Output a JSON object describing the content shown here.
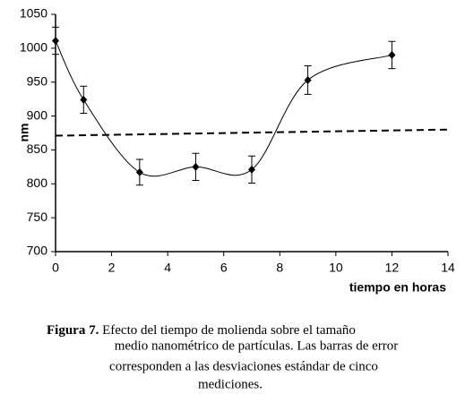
{
  "chart_data": {
    "type": "line",
    "x_label": "tiempo en horas",
    "y_label": "nm",
    "x": [
      0,
      1,
      3,
      5,
      7,
      9,
      12
    ],
    "series": [
      {
        "color": "#000000",
        "values": [
          1011,
          924,
          817,
          825,
          821,
          953,
          990
        ],
        "errors": [
          20,
          20,
          19,
          20,
          20,
          21,
          20
        ]
      }
    ],
    "reference_line": {
      "x": [
        0,
        14
      ],
      "values": [
        871,
        880
      ],
      "color": "#000000"
    },
    "xlim": [
      0,
      14
    ],
    "xticks": [
      0,
      2,
      4,
      6,
      8,
      10,
      12,
      14
    ],
    "ylim": [
      700,
      1050
    ],
    "yticks": [
      700,
      750,
      800,
      850,
      900,
      950,
      1000,
      1050
    ],
    "grid": false
  },
  "caption": {
    "label": "Figura 7.",
    "lines": [
      "Efecto del tiempo de molienda sobre el tamaño",
      "medio nanométrico de  partículas. Las barras de error",
      "corresponden a  las desviaciones estándar de cinco",
      "mediciones."
    ]
  }
}
